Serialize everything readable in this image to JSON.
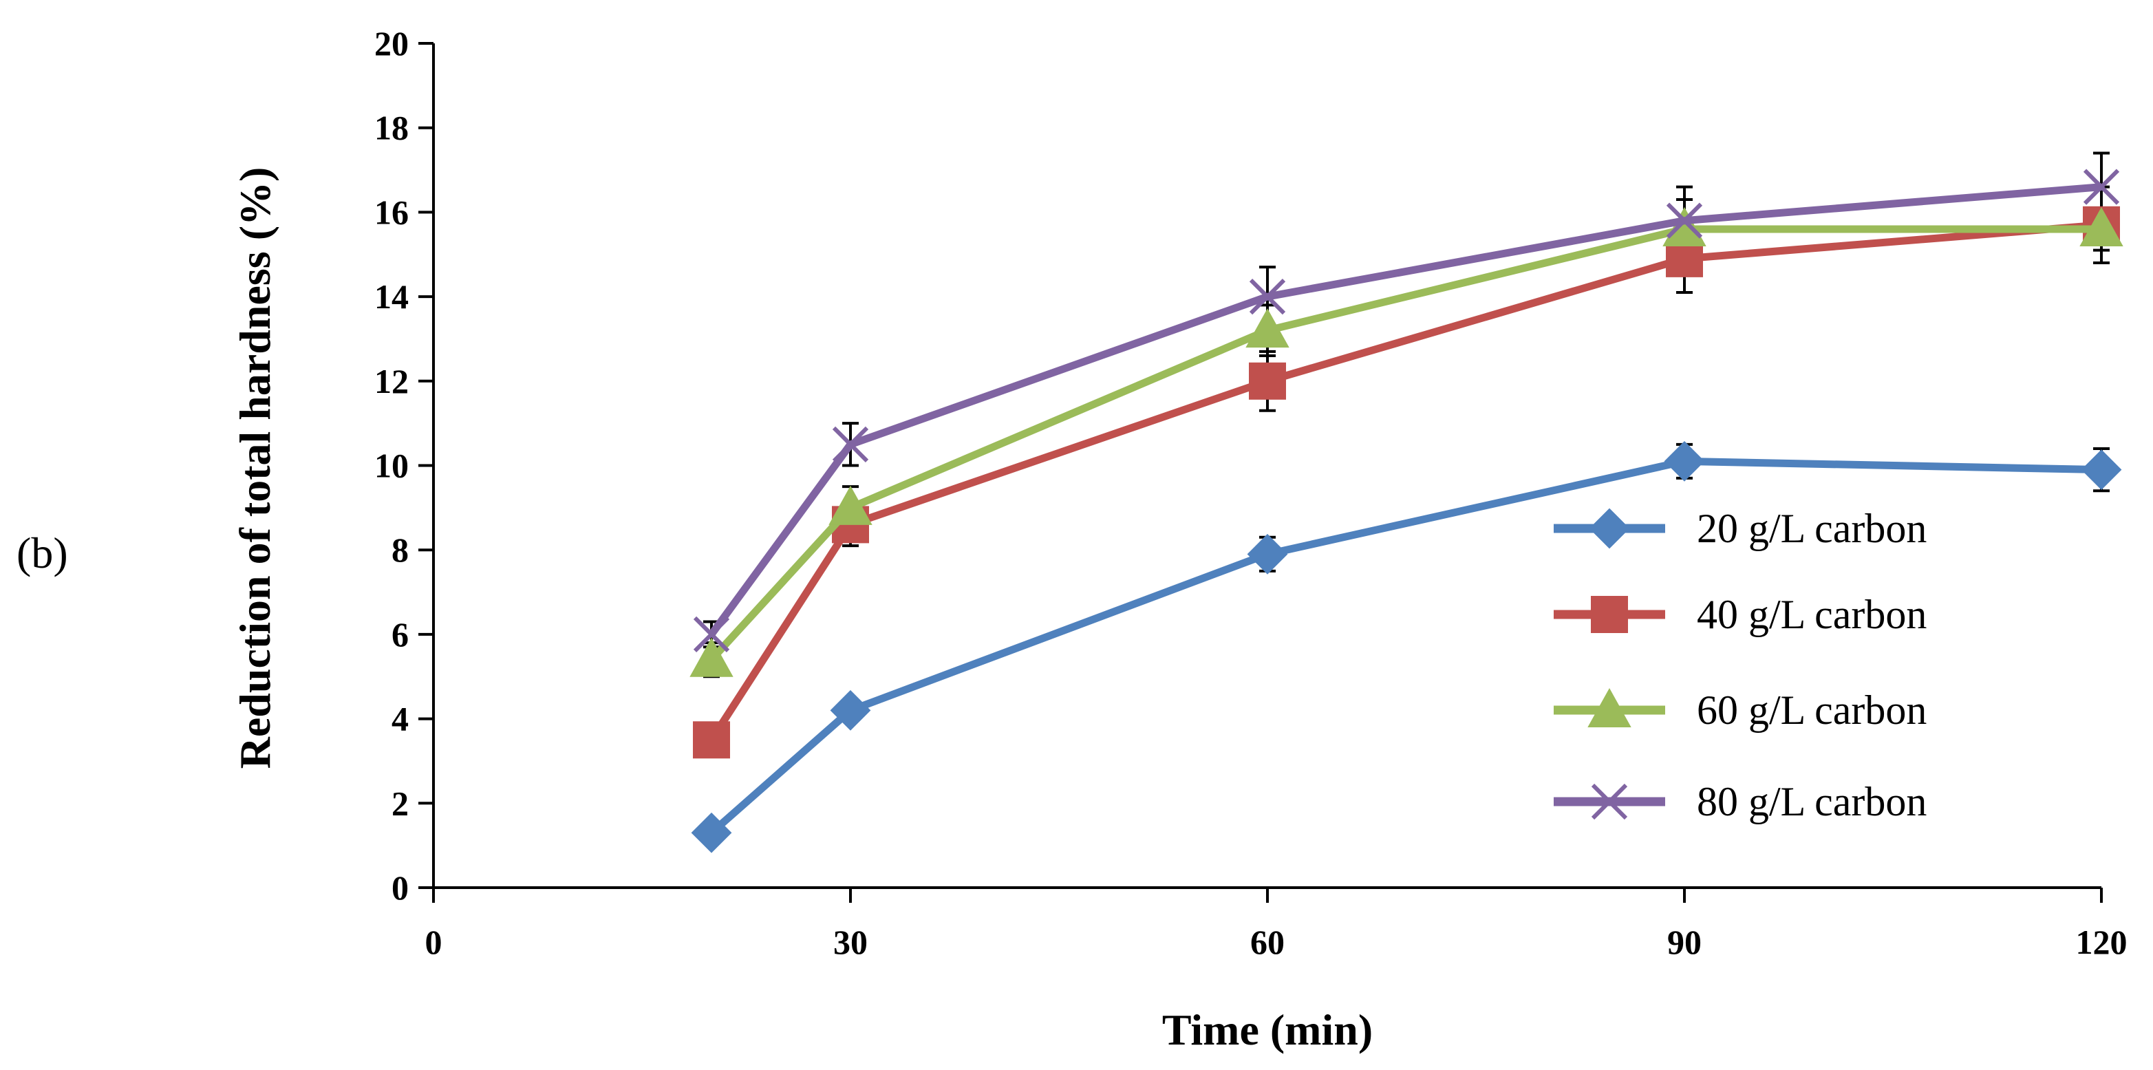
{
  "panel_label": "(b)",
  "colors": {
    "20 g/L carbon": "#4F81BD",
    "40 g/L carbon": "#C0504D",
    "60 g/L carbon": "#9BBB59",
    "80 g/L carbon": "#8064A2",
    "axis": "#000000"
  },
  "chart_data": {
    "type": "line",
    "title": "",
    "xlabel": "Time (min)",
    "ylabel": "Reduction of total hardness (%)",
    "xlim": [
      0,
      120
    ],
    "ylim": [
      0,
      20
    ],
    "xticks": [
      0,
      30,
      60,
      90,
      120
    ],
    "yticks": [
      0,
      2,
      4,
      6,
      8,
      10,
      12,
      14,
      16,
      18,
      20
    ],
    "x": [
      20,
      30,
      60,
      90,
      120
    ],
    "legend_position": "lower-right",
    "series": [
      {
        "name": "20 g/L carbon",
        "marker": "diamond",
        "values": [
          1.3,
          4.2,
          7.9,
          10.1,
          9.9
        ],
        "errors": [
          0.2,
          0.2,
          0.4,
          0.4,
          0.5
        ]
      },
      {
        "name": "40 g/L carbon",
        "marker": "square",
        "values": [
          3.5,
          8.6,
          12.0,
          14.9,
          15.7
        ],
        "errors": [
          0.3,
          0.5,
          0.7,
          0.8,
          0.9
        ]
      },
      {
        "name": "60 g/L carbon",
        "marker": "triangle",
        "values": [
          5.4,
          9.0,
          13.2,
          15.6,
          15.6
        ],
        "errors": [
          0.4,
          0.5,
          0.6,
          0.7,
          0.5
        ]
      },
      {
        "name": "80 g/L carbon",
        "marker": "x",
        "values": [
          6.0,
          10.5,
          14.0,
          15.8,
          16.6
        ],
        "errors": [
          0.3,
          0.5,
          0.7,
          0.8,
          0.8
        ]
      }
    ]
  }
}
